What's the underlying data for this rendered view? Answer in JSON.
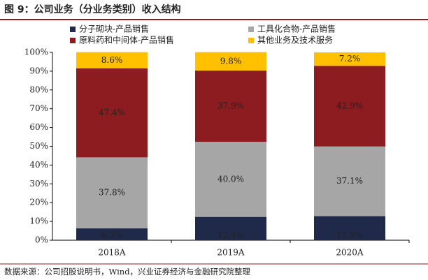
{
  "chart_data": {
    "type": "stacked_bar",
    "title": "图 9：公司业务（分业务类别）收入结构",
    "source": "数据来源：公司招股说明书，Wind，兴业证券经济与金融研究院整理",
    "categories": [
      "2018A",
      "2019A",
      "2020A"
    ],
    "series": [
      {
        "name": "分子砌块-产品销售",
        "color": "#1f2a4a",
        "values": [
          6.3,
          12.4,
          12.8
        ],
        "value_labels": [
          "6.3%",
          "12.4%",
          "12.8%"
        ]
      },
      {
        "name": "工具化合物-产品销售",
        "color": "#a6a6a6",
        "values": [
          37.8,
          40.0,
          37.1
        ],
        "value_labels": [
          "37.8%",
          "40.0%",
          "37.1%"
        ]
      },
      {
        "name": "原料药和中间体-产品销售",
        "color": "#8c1c20",
        "values": [
          47.4,
          37.9,
          42.9
        ],
        "value_labels": [
          "47.4%",
          "37.9%",
          "42.9%"
        ]
      },
      {
        "name": "其他业务及技术服务",
        "color": "#ffc000",
        "values": [
          8.6,
          9.8,
          7.2
        ],
        "value_labels": [
          "8.6%",
          "9.8%",
          "7.2%"
        ]
      }
    ],
    "ylim": [
      0,
      100
    ],
    "yticks": [
      {
        "value": 0,
        "label": "0%"
      },
      {
        "value": 10,
        "label": "10%"
      },
      {
        "value": 20,
        "label": "20%"
      },
      {
        "value": 30,
        "label": "30%"
      },
      {
        "value": 40,
        "label": "40%"
      },
      {
        "value": 50,
        "label": "50%"
      },
      {
        "value": 60,
        "label": "60%"
      },
      {
        "value": 70,
        "label": "70%"
      },
      {
        "value": 80,
        "label": "80%"
      },
      {
        "value": 90,
        "label": "90%"
      },
      {
        "value": 100,
        "label": "100%"
      }
    ],
    "grid": false
  }
}
